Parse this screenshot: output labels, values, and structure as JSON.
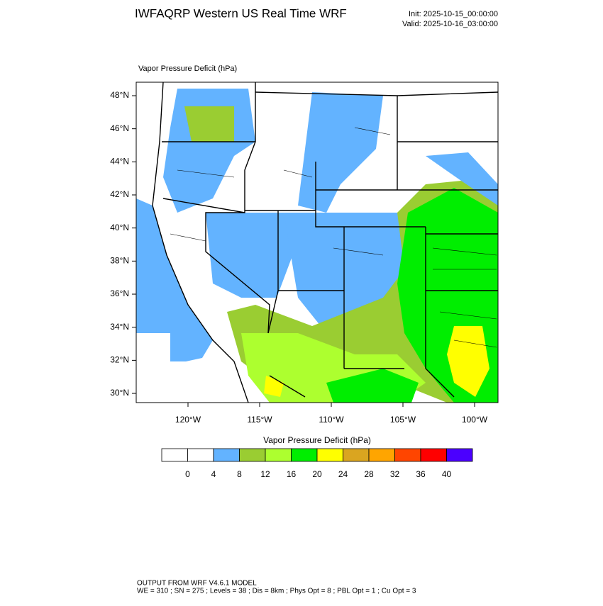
{
  "header": {
    "title": "IWFAQRP Western US Real Time WRF",
    "init": "Init: 2025-10-15_00:00:00",
    "valid": "Valid: 2025-10-16_03:00:00"
  },
  "map": {
    "label": "Vapor Pressure Deficit   (hPa)",
    "lat_labels": [
      "48°N",
      "46°N",
      "44°N",
      "42°N",
      "40°N",
      "38°N",
      "36°N",
      "34°N",
      "32°N",
      "30°N"
    ],
    "lon_labels": [
      "120°W",
      "115°W",
      "110°W",
      "105°W",
      "100°W"
    ]
  },
  "colorbar": {
    "title": "Vapor Pressure Deficit  (hPa)",
    "levels": [
      0,
      4,
      8,
      12,
      16,
      20,
      24,
      28,
      32,
      36,
      40
    ],
    "colors": [
      "#ffffff",
      "#ffffff",
      "#63b3ff",
      "#9acd32",
      "#adff2f",
      "#00ee00",
      "#ffff00",
      "#daa520",
      "#ffa500",
      "#ff4500",
      "#ff0000",
      "#4b00ff"
    ]
  },
  "footer": {
    "line1": "OUTPUT FROM WRF V4.6.1 MODEL",
    "line2": "WE = 310 ; SN = 275 ; Levels = 38 ; Dis = 8km ; Phys Opt = 8 ; PBL Opt = 1 ; Cu Opt = 3"
  }
}
